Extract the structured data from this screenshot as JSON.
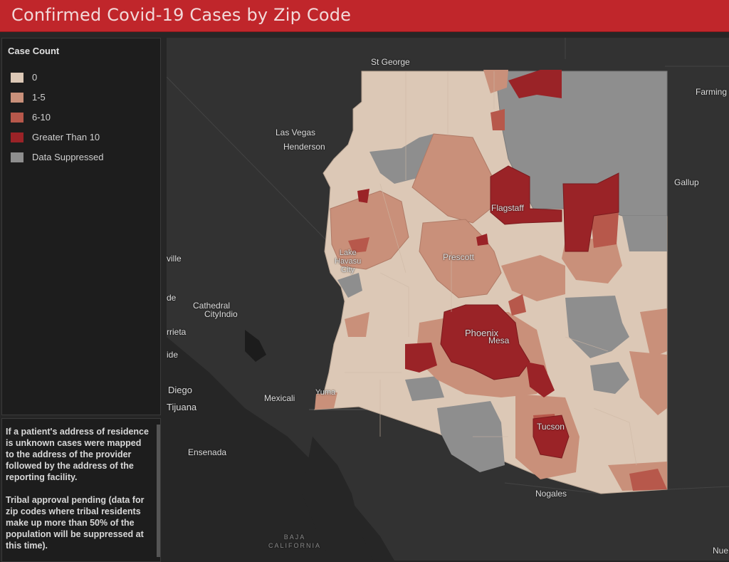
{
  "header": {
    "title": "Confirmed Covid-19 Cases by Zip Code",
    "bg_color": "#c0262b"
  },
  "legend": {
    "title": "Case Count",
    "items": [
      {
        "label": "0",
        "color": "#dcc8b6"
      },
      {
        "label": "1-5",
        "color": "#c9907a"
      },
      {
        "label": "6-10",
        "color": "#b7584b"
      },
      {
        "label": "Greater Than 10",
        "color": "#9a2327"
      },
      {
        "label": "Data Suppressed",
        "color": "#8e8e8e"
      }
    ]
  },
  "notes": {
    "paragraph1": "If a patient's address of residence is unknown cases were mapped to the address of the provider followed by the address of the reporting facility.",
    "paragraph2": "Tribal approval pending (data for zip codes where tribal residents make up more than 50% of the population will be suppressed at this time)."
  },
  "map": {
    "places": {
      "st_george": "St George",
      "farming": "Farming",
      "las_vegas": "Las Vegas",
      "henderson": "Henderson",
      "gallup": "Gallup",
      "flagstaff": "Flagstaff",
      "ville": "ville",
      "lake_havasu": "Lake\nHavasu\nCity",
      "prescott": "Prescott",
      "de": "de",
      "cathedral": "Cathedral",
      "cityindio": "CityIndio",
      "phoenix": "Phoenix",
      "mesa": "Mesa",
      "rrieta": "rrieta",
      "ide": "ide",
      "diego": "Diego",
      "tijuana": "Tijuana",
      "mexicali": "Mexicali",
      "yuma": "Yuma",
      "tucson": "Tucson",
      "ensenada": "Ensenada",
      "nogales": "Nogales",
      "baja": "BAJA\nCALIFORNIA",
      "nue": "Nue"
    }
  }
}
